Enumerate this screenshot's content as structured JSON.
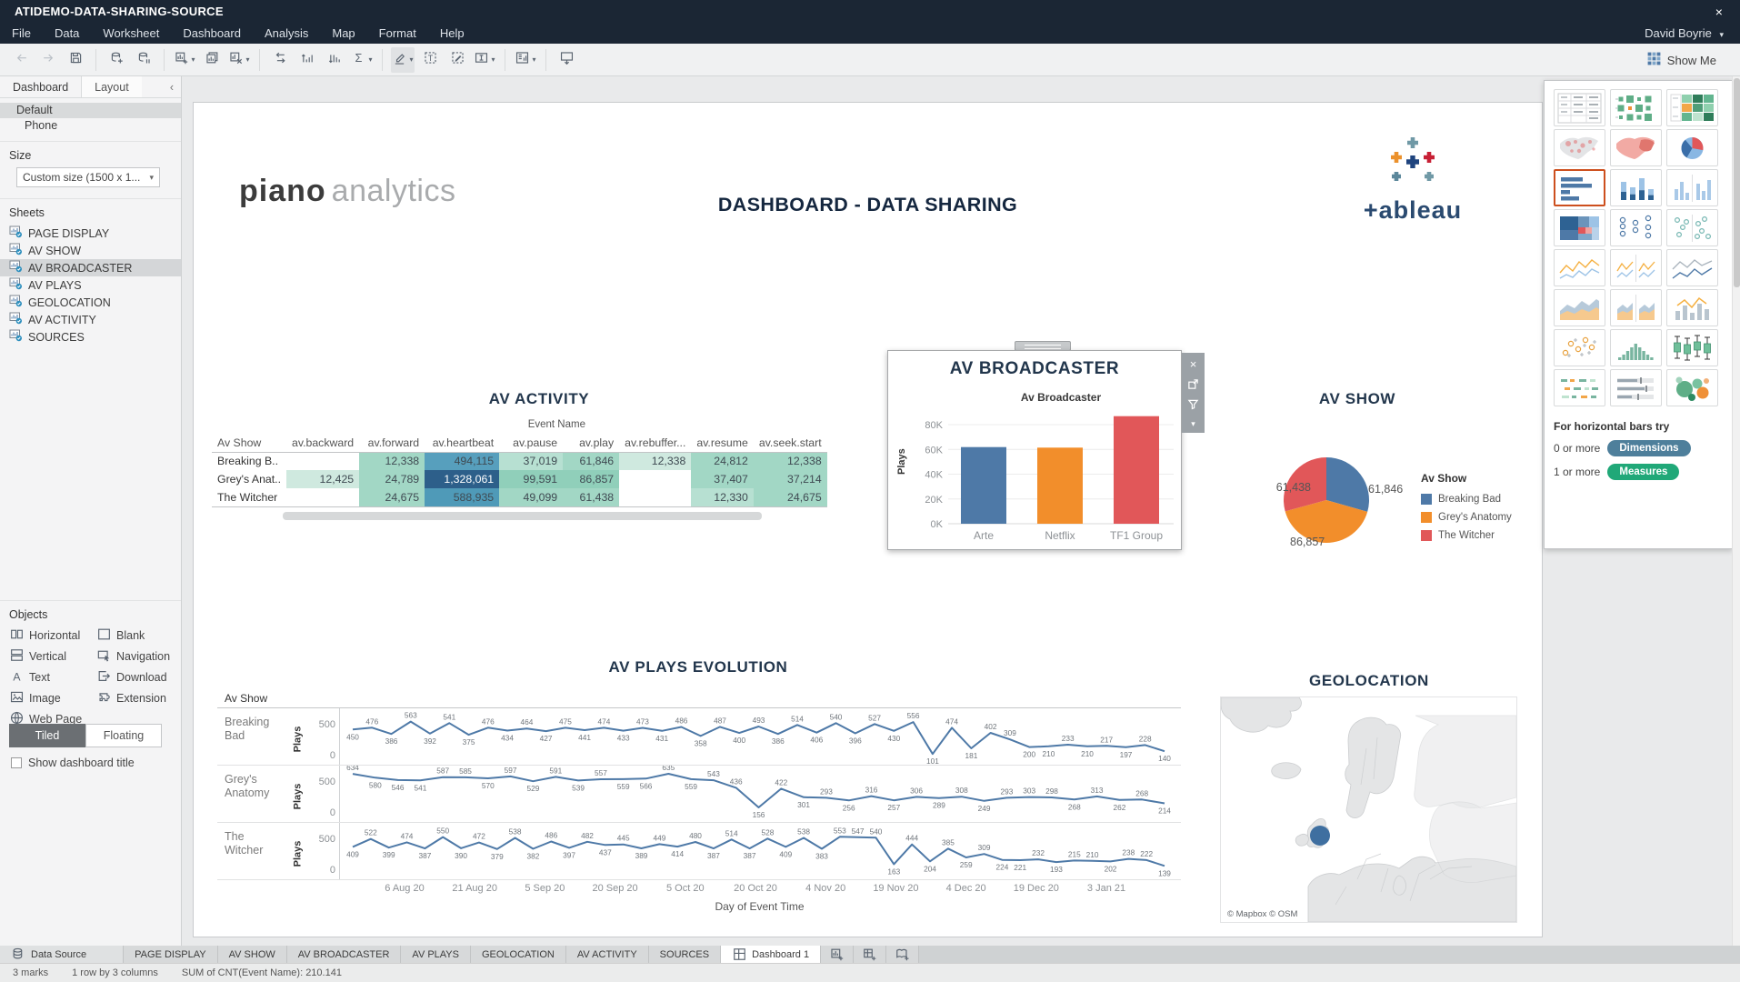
{
  "window": {
    "title": "ATIDEMO-DATA-SHARING-SOURCE",
    "close_glyph": "×"
  },
  "menu": {
    "items": [
      "File",
      "Data",
      "Worksheet",
      "Dashboard",
      "Analysis",
      "Map",
      "Format",
      "Help"
    ],
    "user": "David Boyrie",
    "user_caret": "▾"
  },
  "toolbar": {
    "show_me": "Show Me",
    "icons": [
      {
        "name": "undo-icon",
        "disabled": true
      },
      {
        "name": "redo-icon",
        "disabled": true
      },
      {
        "name": "save-icon"
      },
      {
        "name": "divider"
      },
      {
        "name": "new-data-source-icon"
      },
      {
        "name": "pause-auto-updates-icon"
      },
      {
        "name": "divider"
      },
      {
        "name": "new-worksheet-icon",
        "caret": true
      },
      {
        "name": "duplicate-icon"
      },
      {
        "name": "clear-sheet-icon",
        "caret": true
      },
      {
        "name": "divider"
      },
      {
        "name": "swap-rows-columns-icon"
      },
      {
        "name": "sort-ascending-icon"
      },
      {
        "name": "sort-descending-icon"
      },
      {
        "name": "totals-icon",
        "caret": true
      },
      {
        "name": "divider"
      },
      {
        "name": "highlight-icon",
        "caret": true,
        "active": true
      },
      {
        "name": "show-mark-labels-icon"
      },
      {
        "name": "format-icon"
      },
      {
        "name": "fit-icon",
        "caret": true
      },
      {
        "name": "divider"
      },
      {
        "name": "show-hide-cards-icon",
        "caret": true
      },
      {
        "name": "divider"
      },
      {
        "name": "presentation-mode-icon"
      }
    ]
  },
  "sidebar": {
    "tabs": [
      "Dashboard",
      "Layout"
    ],
    "collapse_glyph": "‹",
    "device_options": [
      "Default",
      "Phone"
    ],
    "selected_device": "Default",
    "size_label": "Size",
    "size_value": "Custom size (1500 x 1...",
    "sheets_label": "Sheets",
    "sheets": [
      "PAGE DISPLAY",
      "AV SHOW",
      "AV BROADCASTER",
      "AV PLAYS",
      "GEOLOCATION",
      "AV ACTIVITY",
      "SOURCES"
    ],
    "selected_sheet": "AV BROADCASTER",
    "objects_label": "Objects",
    "objects": [
      {
        "label": "Horizontal",
        "icon": "horizontal-icon"
      },
      {
        "label": "Blank",
        "icon": "blank-icon"
      },
      {
        "label": "Vertical",
        "icon": "vertical-icon"
      },
      {
        "label": "Navigation",
        "icon": "navigation-icon"
      },
      {
        "label": "Text",
        "icon": "text-icon"
      },
      {
        "label": "Download",
        "icon": "download-icon"
      },
      {
        "label": "Image",
        "icon": "image-icon"
      },
      {
        "label": "Extension",
        "icon": "extension-icon"
      },
      {
        "label": "Web Page",
        "icon": "web-page-icon"
      }
    ],
    "modes": [
      "Tiled",
      "Floating"
    ],
    "active_mode": "Tiled",
    "show_title_label": "Show dashboard title",
    "show_title_checked": false
  },
  "dashboard": {
    "logo_primary": "piano",
    "logo_secondary": "analytics",
    "title": "DASHBOARD - DATA SHARING",
    "tableau_wordmark": "+ableau"
  },
  "av_activity": {
    "title": "AV ACTIVITY",
    "group_header": "Event Name",
    "columns": [
      "Av Show",
      "av.backward",
      "av.forward",
      "av.heartbeat",
      "av.pause",
      "av.play",
      "av.rebuffer...",
      "av.resume",
      "av.seek.start"
    ],
    "rows": [
      {
        "label": "Breaking B..",
        "cells": [
          {
            "v": "",
            "bg": ""
          },
          {
            "v": "12,338",
            "bg": "#a2d7c5"
          },
          {
            "v": "494,115",
            "bg": "#579fbd"
          },
          {
            "v": "37,019",
            "bg": "#b7e0d2"
          },
          {
            "v": "61,846",
            "bg": "#a2d7c5"
          },
          {
            "v": "12,338",
            "bg": "#cfe9df"
          },
          {
            "v": "24,812",
            "bg": "#a2d7c5"
          },
          {
            "v": "12,338",
            "bg": "#a2d7c5"
          }
        ]
      },
      {
        "label": "Grey's Anat..",
        "cells": [
          {
            "v": "12,425",
            "bg": "#cfe9df"
          },
          {
            "v": "24,789",
            "bg": "#a2d7c5"
          },
          {
            "v": "1,328,061",
            "bg": "#2d5f8a",
            "fg": "#ffffff"
          },
          {
            "v": "99,591",
            "bg": "#90cfba"
          },
          {
            "v": "86,857",
            "bg": "#90cfba"
          },
          {
            "v": "",
            "bg": ""
          },
          {
            "v": "37,407",
            "bg": "#a2d7c5"
          },
          {
            "v": "37,214",
            "bg": "#a2d7c5"
          }
        ]
      },
      {
        "label": "The Witcher",
        "cells": [
          {
            "v": "",
            "bg": ""
          },
          {
            "v": "24,675",
            "bg": "#a2d7c5"
          },
          {
            "v": "588,935",
            "bg": "#4f9ab8"
          },
          {
            "v": "49,099",
            "bg": "#a2d7c5"
          },
          {
            "v": "61,438",
            "bg": "#a2d7c5"
          },
          {
            "v": "",
            "bg": ""
          },
          {
            "v": "12,330",
            "bg": "#b7e0d2"
          },
          {
            "v": "24,675",
            "bg": "#a2d7c5"
          }
        ]
      }
    ]
  },
  "av_broadcaster": {
    "panel_title": "AV BROADCASTER",
    "chart_title": "Av Broadcaster",
    "tool_icons": [
      "close-icon",
      "go-to-sheet-icon",
      "filter-icon",
      "more-options-icon"
    ]
  },
  "av_show": {
    "title": "AV SHOW",
    "label_left": "61,438",
    "label_right": "61,846",
    "label_bottom": "86,857",
    "legend_title": "Av Show",
    "legend": [
      {
        "label": "Breaking Bad",
        "color": "#4e79a7"
      },
      {
        "label": "Grey's Anatomy",
        "color": "#f28e2b"
      },
      {
        "label": "The Witcher",
        "color": "#e15759"
      }
    ]
  },
  "av_plays": {
    "title": "AV PLAYS EVOLUTION",
    "group_label": "Av Show",
    "ylabel": "Plays",
    "yticks": [
      "500",
      "0"
    ],
    "xlabel": "Day of Event Time"
  },
  "geolocation": {
    "title": "GEOLOCATION",
    "attribution": "© Mapbox  © OSM"
  },
  "show_me": {
    "thumbnails": [
      "text-table",
      "heat-map",
      "highlight-table",
      "symbol-map",
      "filled-map",
      "pie-chart",
      "horizontal-bars",
      "stacked-bars",
      "side-by-side-bars",
      "treemap",
      "circle-views",
      "side-by-side-circles",
      "continuous-lines",
      "discrete-lines",
      "dual-lines",
      "continuous-area",
      "discrete-area",
      "dual-combination",
      "scatter-plot",
      "histogram",
      "box-and-whisker",
      "gantt",
      "bullet-graph",
      "packed-bubbles"
    ],
    "selected": "horizontal-bars",
    "footer_title": "For horizontal bars try",
    "hints": [
      {
        "prefix": "0 or more",
        "pill": "Dimensions",
        "color": "#4e7f9b"
      },
      {
        "prefix": "1 or more",
        "pill": "Measures",
        "color": "#20a878"
      }
    ]
  },
  "bottom_tabs": {
    "data_source": "Data Source",
    "sheet_tabs": [
      "PAGE DISPLAY",
      "AV SHOW",
      "AV BROADCASTER",
      "AV PLAYS",
      "GEOLOCATION",
      "AV ACTIVITY",
      "SOURCES"
    ],
    "dashboard_tab": "Dashboard 1",
    "new_buttons": [
      "new-worksheet-icon",
      "new-dashboard-icon",
      "new-story-icon"
    ]
  },
  "status_bar": {
    "marks": "3 marks",
    "dims": "1 row by 3 columns",
    "agg": "SUM of CNT(Event Name): 210.141"
  },
  "chart_data": [
    {
      "type": "bar",
      "title": "Av Broadcaster",
      "ylabel": "Plays",
      "categories": [
        "Arte",
        "Netflix",
        "TF1 Group"
      ],
      "values": [
        61846,
        61438,
        86857
      ],
      "colors": [
        "#4e79a7",
        "#f28e2b",
        "#e15759"
      ],
      "ylim": [
        0,
        90000
      ],
      "yticks": [
        "0K",
        "20K",
        "40K",
        "60K",
        "80K"
      ]
    },
    {
      "type": "pie",
      "title": "AV SHOW",
      "categories": [
        "Breaking Bad",
        "Grey's Anatomy",
        "The Witcher"
      ],
      "values": [
        61846,
        86857,
        61438
      ],
      "colors": [
        "#4e79a7",
        "#f28e2b",
        "#e15759"
      ],
      "data_labels": [
        "61,846",
        "86,857",
        "61,438"
      ],
      "legend_position": "right"
    },
    {
      "type": "line",
      "title": "AV PLAYS EVOLUTION",
      "xlabel": "Day of Event Time",
      "ylabel": "Plays",
      "ylim": [
        0,
        700
      ],
      "yticks": [
        500,
        0
      ],
      "x_tick_labels": [
        "6 Aug 20",
        "21 Aug 20",
        "5 Sep 20",
        "20 Sep 20",
        "5 Oct 20",
        "20 Oct 20",
        "4 Nov 20",
        "19 Nov 20",
        "4 Dec 20",
        "19 Dec 20",
        "3 Jan 21"
      ],
      "line_color": "#4e79a7",
      "series": [
        {
          "name": "Breaking Bad",
          "values": [
            450,
            476,
            386,
            563,
            392,
            541,
            375,
            476,
            434,
            464,
            427,
            475,
            441,
            474,
            433,
            473,
            431,
            486,
            358,
            487,
            400,
            493,
            386,
            514,
            406,
            540,
            396,
            527,
            430,
            556,
            101,
            474,
            181,
            402,
            309,
            200,
            210,
            233,
            210,
            217,
            197,
            228,
            140
          ]
        },
        {
          "name": "Grey's Anatomy",
          "values": [
            634,
            580,
            546,
            541,
            587,
            585,
            570,
            597,
            529,
            591,
            539,
            557,
            559,
            566,
            635,
            559,
            543,
            436,
            156,
            422,
            301,
            293,
            256,
            316,
            257,
            306,
            289,
            308,
            249,
            293,
            303,
            298,
            268,
            313,
            262,
            268,
            214
          ]
        },
        {
          "name": "The Witcher",
          "values": [
            409,
            522,
            399,
            474,
            387,
            550,
            390,
            472,
            379,
            538,
            382,
            486,
            397,
            482,
            437,
            445,
            389,
            449,
            414,
            480,
            387,
            514,
            387,
            528,
            409,
            538,
            383,
            553,
            547,
            540,
            163,
            444,
            204,
            385,
            259,
            309,
            224,
            221,
            232,
            193,
            215,
            210,
            202,
            238,
            222,
            139
          ]
        }
      ]
    }
  ]
}
